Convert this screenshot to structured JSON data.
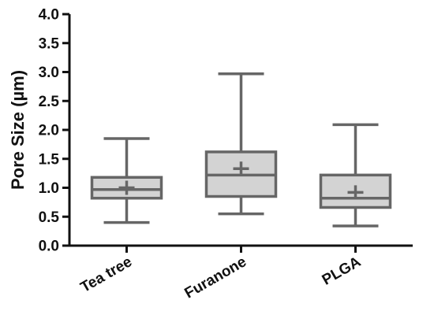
{
  "chart_data": {
    "type": "boxplot",
    "title": "",
    "xlabel": "",
    "ylabel": "Pore Size (µm)",
    "ylim": [
      0,
      4.0
    ],
    "yticks": [
      "0.0",
      "0.5",
      "1.0",
      "1.5",
      "2.0",
      "2.5",
      "3.0",
      "3.5",
      "4.0"
    ],
    "categories": [
      "Tea tree",
      "Furanone",
      "PLGA"
    ],
    "boxes": [
      {
        "category": "Tea tree",
        "min": 0.4,
        "q1": 0.82,
        "median": 0.97,
        "q3": 1.18,
        "max": 1.85,
        "mean": 1.0
      },
      {
        "category": "Furanone",
        "min": 0.55,
        "q1": 0.85,
        "median": 1.22,
        "q3": 1.62,
        "max": 2.97,
        "mean": 1.33
      },
      {
        "category": "PLGA",
        "min": 0.34,
        "q1": 0.66,
        "median": 0.82,
        "q3": 1.22,
        "max": 2.09,
        "mean": 0.92
      }
    ],
    "colors": {
      "box_fill": "#d3d3d3",
      "box_stroke": "#666666",
      "axis": "#111111"
    },
    "grid": false,
    "legend": "none"
  }
}
